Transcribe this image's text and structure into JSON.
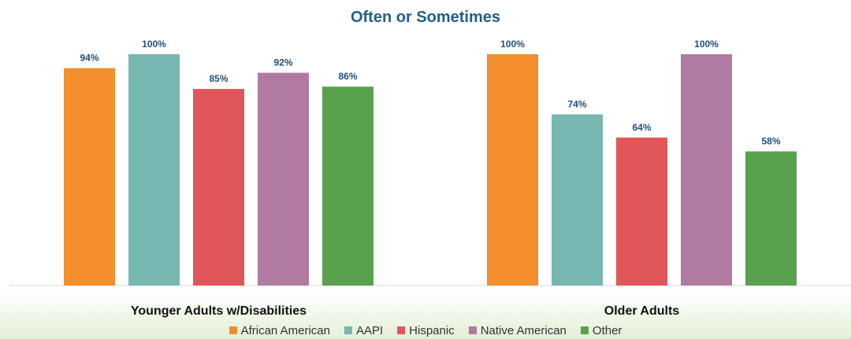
{
  "chart_data": {
    "type": "bar",
    "title": "Often or Sometimes",
    "categories": [
      "Younger Adults w/Disabilities",
      "Older Adults"
    ],
    "series": [
      {
        "name": "African American",
        "color": "#f28e2b",
        "values": [
          94,
          100
        ],
        "labels": [
          "94%",
          "100%"
        ]
      },
      {
        "name": "AAPI",
        "color": "#76b7b2",
        "values": [
          100,
          74
        ],
        "labels": [
          "100%",
          "74%"
        ]
      },
      {
        "name": "Hispanic",
        "color": "#e15759",
        "values": [
          85,
          64
        ],
        "labels": [
          "85%",
          "64%"
        ]
      },
      {
        "name": "Native American",
        "color": "#b07aa1",
        "values": [
          92,
          100
        ],
        "labels": [
          "92%",
          "100%"
        ]
      },
      {
        "name": "Other",
        "color": "#59a14f",
        "values": [
          86,
          58
        ],
        "labels": [
          "86%",
          "58%"
        ]
      }
    ],
    "ylim": [
      0,
      100
    ],
    "grid": false,
    "legend_position": "bottom",
    "xlabel": "",
    "ylabel": ""
  }
}
